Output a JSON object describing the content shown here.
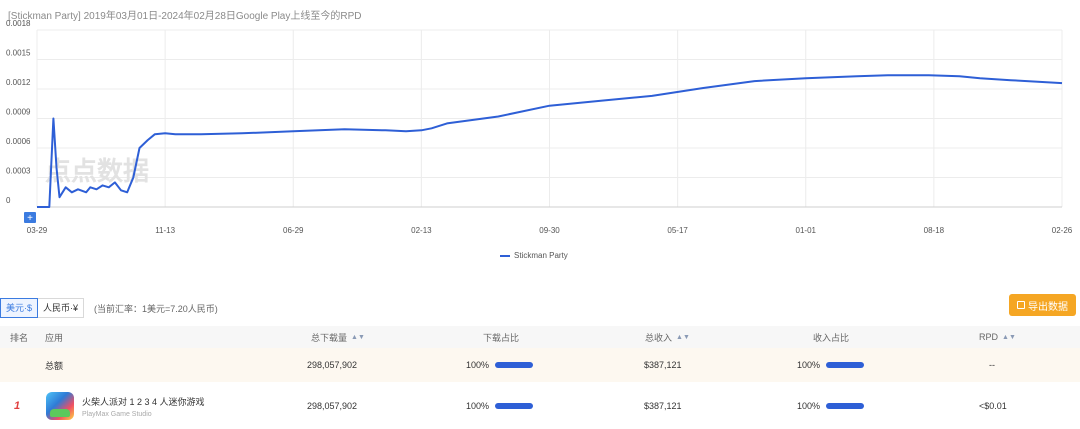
{
  "chart": {
    "title": "[Stickman Party]  2019年03月01日-2024年02月28日Google Play上线至今的RPD",
    "legend": "Stickman Party",
    "series_color": "#2e5fd6",
    "watermark": "点点数据",
    "zoom_label": "+"
  },
  "chart_data": {
    "type": "line",
    "title": "[Stickman Party]  2019年03月01日-2024年02月28日Google Play上线至今的RPD",
    "xlabel": "",
    "ylabel": "",
    "ylim": [
      0,
      0.0018
    ],
    "yticks": [
      "0",
      "0.0003",
      "0.0006",
      "0.0009",
      "0.0012",
      "0.0015",
      "0.0018"
    ],
    "xticks": [
      "03-29",
      "11-13",
      "06-29",
      "02-13",
      "09-30",
      "05-17",
      "01-01",
      "08-18",
      "02-26"
    ],
    "grid": true,
    "legend_position": "bottom",
    "series": [
      {
        "name": "Stickman Party",
        "x": [
          0.0,
          0.012,
          0.016,
          0.019,
          0.022,
          0.028,
          0.034,
          0.04,
          0.048,
          0.052,
          0.058,
          0.064,
          0.07,
          0.076,
          0.082,
          0.088,
          0.094,
          0.1,
          0.108,
          0.115,
          0.125,
          0.135,
          0.16,
          0.2,
          0.25,
          0.3,
          0.34,
          0.36,
          0.375,
          0.385,
          0.4,
          0.45,
          0.5,
          0.55,
          0.6,
          0.65,
          0.7,
          0.75,
          0.8,
          0.83,
          0.87,
          0.9,
          0.92,
          0.95,
          1.0
        ],
        "values": [
          0,
          0,
          0.0009,
          0.0004,
          0.0001,
          0.0002,
          0.00015,
          0.00018,
          0.00015,
          0.0002,
          0.00018,
          0.00022,
          0.0002,
          0.00025,
          0.00017,
          0.00015,
          0.0003,
          0.0006,
          0.00068,
          0.00074,
          0.00075,
          0.00074,
          0.00074,
          0.00075,
          0.00077,
          0.00079,
          0.00078,
          0.00077,
          0.00078,
          0.0008,
          0.00085,
          0.00092,
          0.00103,
          0.00108,
          0.00113,
          0.00121,
          0.00128,
          0.00131,
          0.00133,
          0.00134,
          0.00134,
          0.00133,
          0.00131,
          0.00129,
          0.00126
        ]
      }
    ]
  },
  "currency": {
    "usd_label": "美元·$",
    "cny_label": "人民币·¥",
    "rate_text": "(当前汇率：1美元=7.20人民币)"
  },
  "export_label": "导出数据",
  "table": {
    "headers": {
      "rank": "排名",
      "app": "应用",
      "downloads": "总下载量",
      "download_share": "下载占比",
      "revenue": "总收入",
      "revenue_share": "收入占比",
      "rpd": "RPD"
    },
    "total_row": {
      "label": "总额",
      "downloads": "298,057,902",
      "download_share": "100%",
      "revenue": "$387,121",
      "revenue_share": "100%",
      "rpd": "--"
    },
    "rows": [
      {
        "rank": "1",
        "app_name": "火柴人派对 1 2 3 4 人迷你游戏",
        "developer": "PlayMax Game Studio",
        "downloads": "298,057,902",
        "download_share": "100%",
        "revenue": "$387,121",
        "revenue_share": "100%",
        "rpd": "<$0.01"
      }
    ]
  }
}
